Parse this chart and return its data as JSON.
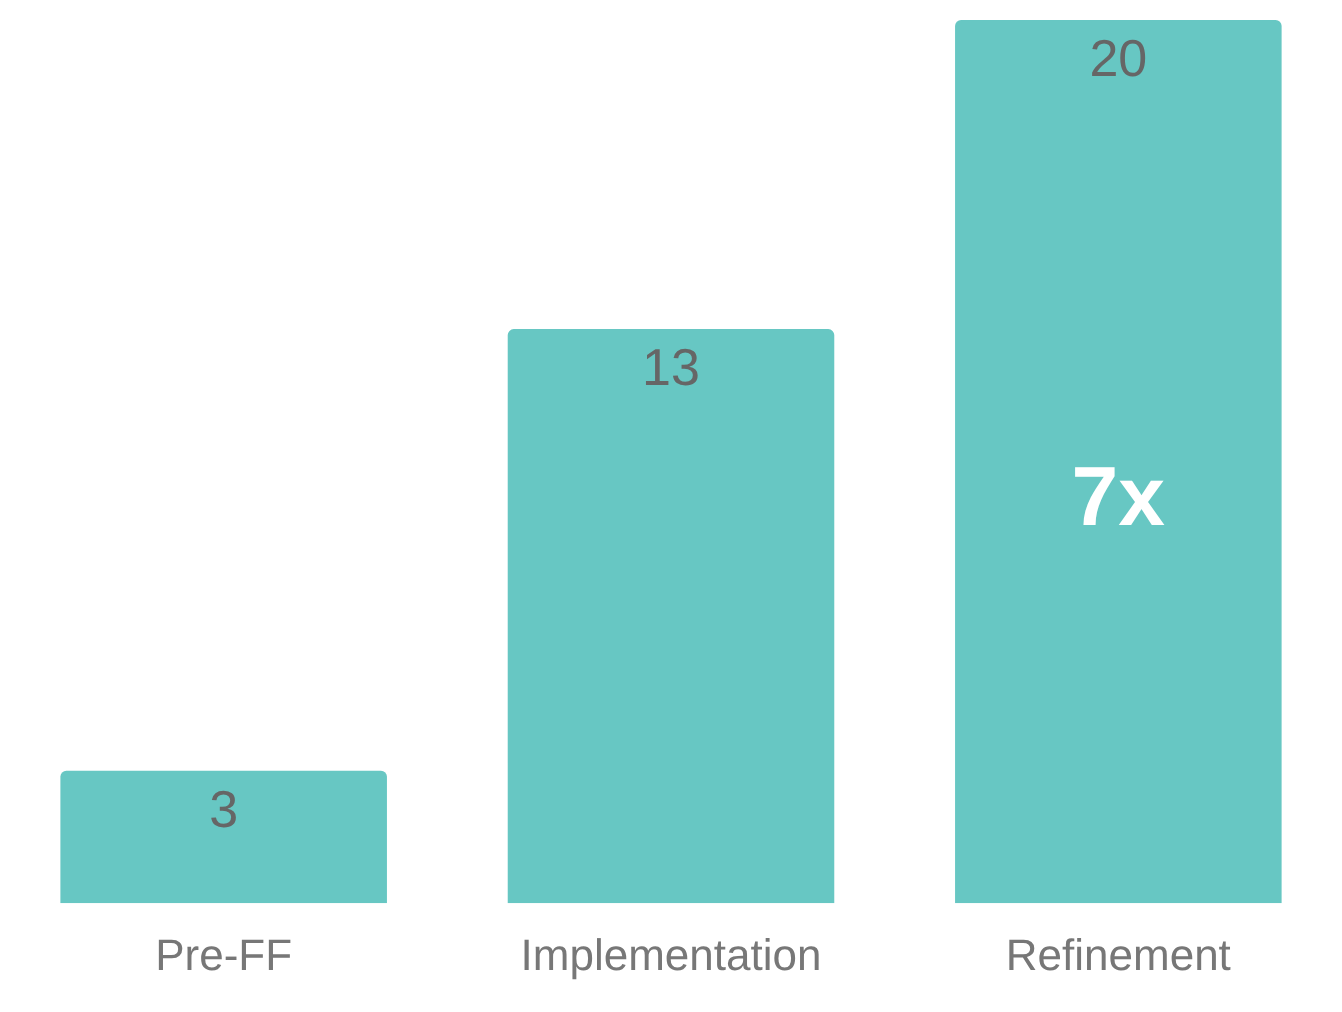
{
  "chart_data": {
    "type": "bar",
    "categories": [
      "Pre-FF",
      "Implementation",
      "Refinement"
    ],
    "values": [
      3,
      13,
      20
    ],
    "color": "#67c7c3",
    "data_labels": true,
    "annotations": [
      "7x"
    ]
  }
}
